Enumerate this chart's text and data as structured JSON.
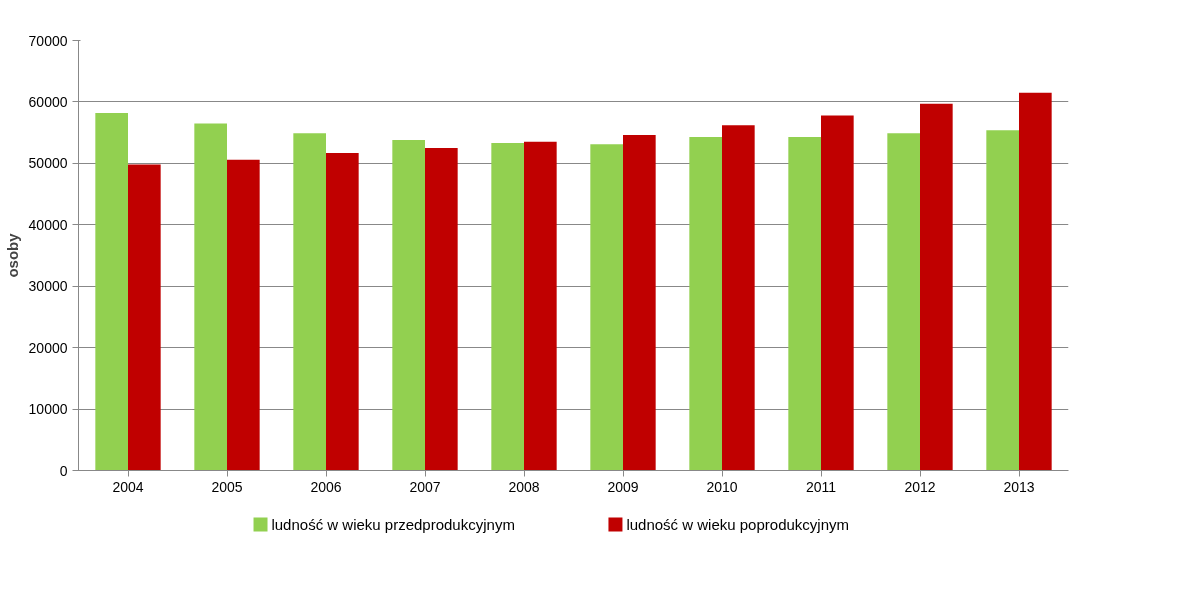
{
  "chart_data": {
    "type": "bar",
    "ylabel": "osoby",
    "categories": [
      "2004",
      "2005",
      "2006",
      "2007",
      "2008",
      "2009",
      "2010",
      "2011",
      "2012",
      "2013"
    ],
    "series": [
      {
        "name": "ludność w wieku przedprodukcyjnym",
        "color": "#92d050",
        "values": [
          58200,
          56500,
          54900,
          53800,
          53300,
          53100,
          54300,
          54300,
          54900,
          55400
        ]
      },
      {
        "name": "ludność w wieku poprodukcyjnym",
        "color": "#c00000",
        "values": [
          49800,
          50600,
          51700,
          52500,
          53500,
          54600,
          56200,
          57800,
          59700,
          61500
        ]
      }
    ],
    "ylim": [
      0,
      70000
    ],
    "yticks": [
      0,
      10000,
      20000,
      30000,
      40000,
      50000,
      60000,
      70000
    ],
    "grid": "y",
    "legend": "bottom"
  }
}
